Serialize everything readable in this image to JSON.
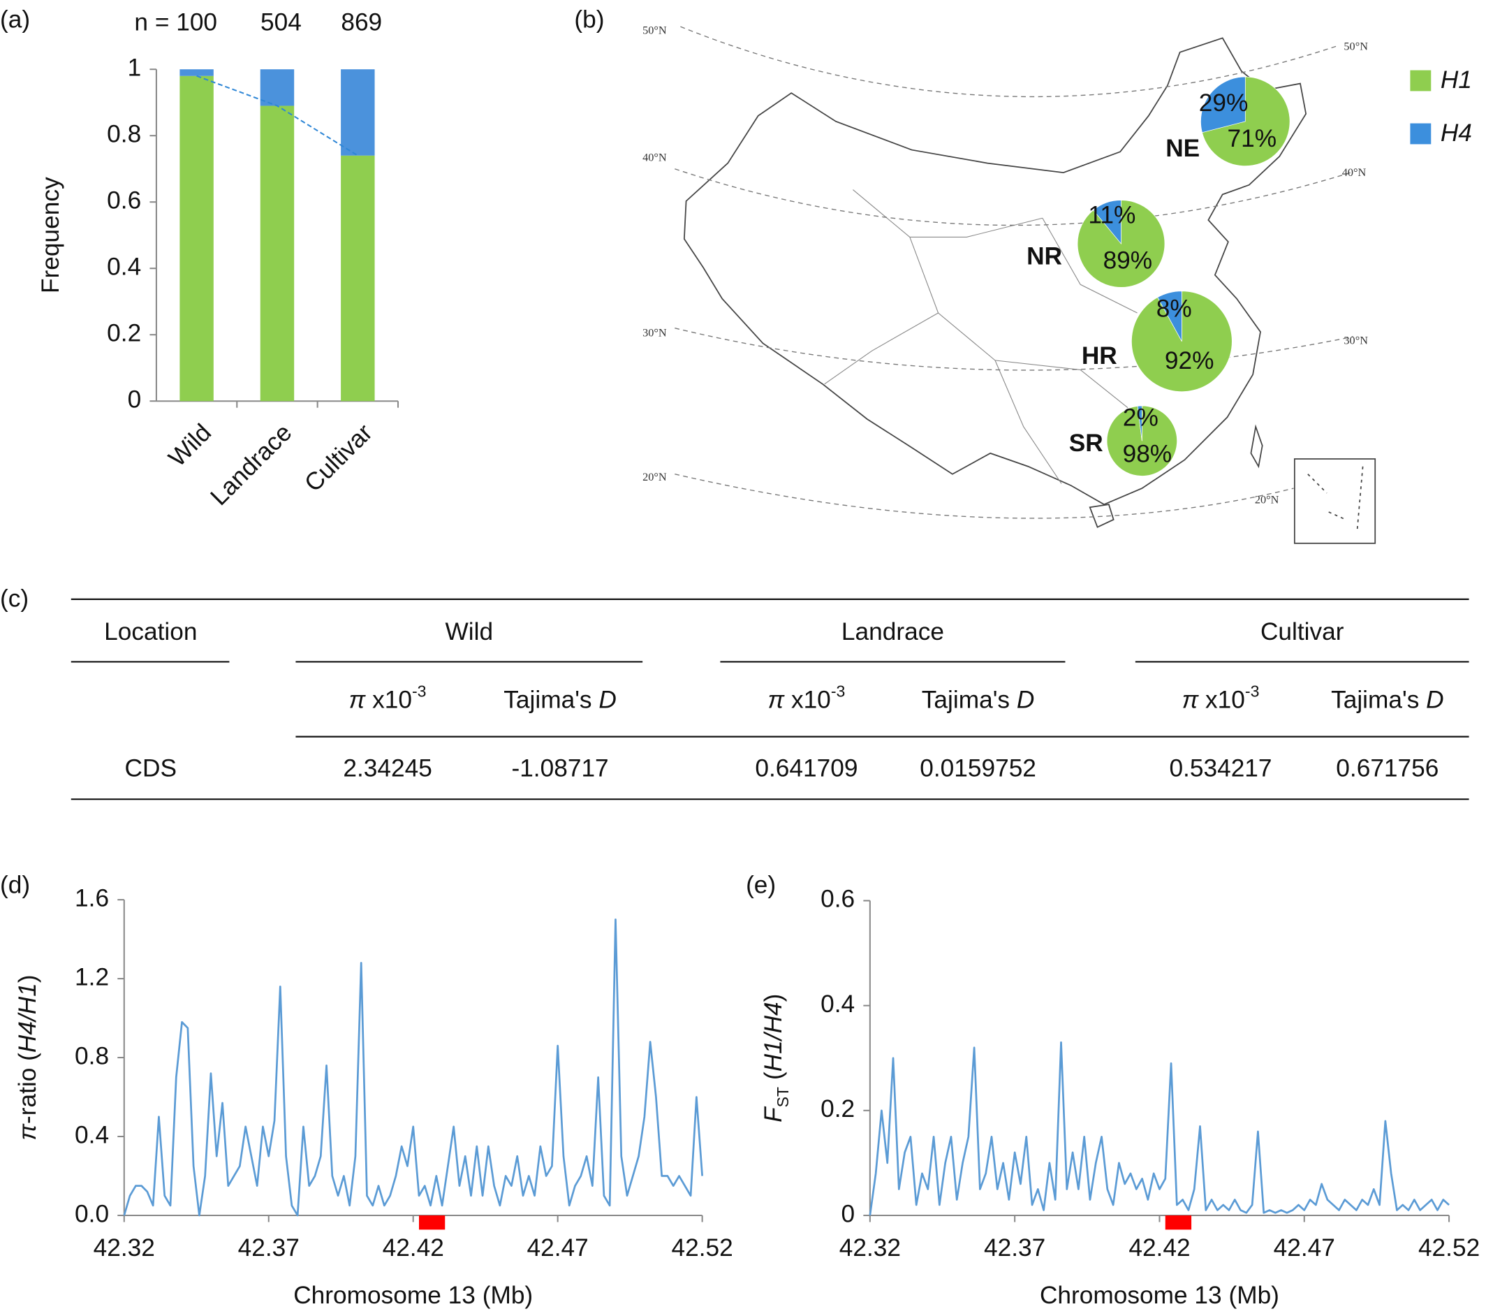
{
  "chart_data": [
    {
      "label": "(a)",
      "type": "bar",
      "stacked": true,
      "categories": [
        "Wild",
        "Landrace",
        "Cultivar"
      ],
      "annotations": [
        "n = 100",
        "504",
        "869"
      ],
      "series": [
        {
          "name": "H1",
          "color": "#8fce4f",
          "values": [
            0.98,
            0.89,
            0.74
          ]
        },
        {
          "name": "H4",
          "color": "#4b92dc",
          "values": [
            0.02,
            0.11,
            0.26
          ]
        }
      ],
      "ylabel": "Frequency",
      "ylim": [
        0,
        1
      ],
      "yticks": [
        0,
        0.2,
        0.4,
        0.6,
        0.8,
        1
      ],
      "trend_line": true,
      "trend_color": "#2e86d6"
    },
    {
      "label": "(b)",
      "type": "pie",
      "series": [
        {
          "name": "H1",
          "color": "#8fce4f"
        },
        {
          "name": "H4",
          "color": "#3c8fdd"
        }
      ],
      "regions": [
        {
          "name": "NE",
          "values": [
            71,
            29
          ],
          "value_labels": [
            "71%",
            "29%"
          ]
        },
        {
          "name": "NR",
          "values": [
            89,
            11
          ],
          "value_labels": [
            "89%",
            "11%"
          ]
        },
        {
          "name": "HR",
          "values": [
            92,
            8
          ],
          "value_labels": [
            "92%",
            "8%"
          ]
        },
        {
          "name": "SR",
          "values": [
            98,
            2
          ],
          "value_labels": [
            "98%",
            "2%"
          ]
        }
      ],
      "lat_labels": [
        "50°N",
        "40°N",
        "30°N",
        "20°N"
      ]
    },
    {
      "label": "(d)",
      "type": "line",
      "color": "#5b9bd5",
      "x": [
        42.32,
        42.322,
        42.324,
        42.326,
        42.328,
        42.33,
        42.332,
        42.334,
        42.336,
        42.338,
        42.34,
        42.342,
        42.344,
        42.346,
        42.348,
        42.35,
        42.352,
        42.354,
        42.356,
        42.358,
        42.36,
        42.362,
        42.364,
        42.366,
        42.368,
        42.37,
        42.372,
        42.374,
        42.376,
        42.378,
        42.38,
        42.382,
        42.384,
        42.386,
        42.388,
        42.39,
        42.392,
        42.394,
        42.396,
        42.398,
        42.4,
        42.402,
        42.404,
        42.406,
        42.408,
        42.41,
        42.412,
        42.414,
        42.416,
        42.418,
        42.42,
        42.422,
        42.424,
        42.426,
        42.428,
        42.43,
        42.432,
        42.434,
        42.436,
        42.438,
        42.44,
        42.442,
        42.444,
        42.446,
        42.448,
        42.45,
        42.452,
        42.454,
        42.456,
        42.458,
        42.46,
        42.462,
        42.464,
        42.466,
        42.468,
        42.47,
        42.472,
        42.474,
        42.476,
        42.478,
        42.48,
        42.482,
        42.484,
        42.486,
        42.488,
        42.49,
        42.492,
        42.494,
        42.496,
        42.498,
        42.5,
        42.502,
        42.504,
        42.506,
        42.508,
        42.51,
        42.512,
        42.514,
        42.516,
        42.518,
        42.52
      ],
      "values": [
        0,
        0.1,
        0.15,
        0.15,
        0.12,
        0.05,
        0.5,
        0.1,
        0.05,
        0.7,
        0.98,
        0.95,
        0.25,
        0,
        0.2,
        0.72,
        0.3,
        0.57,
        0.15,
        0.2,
        0.25,
        0.45,
        0.3,
        0.15,
        0.45,
        0.3,
        0.48,
        1.16,
        0.3,
        0.05,
        0,
        0.45,
        0.15,
        0.2,
        0.3,
        0.76,
        0.2,
        0.1,
        0.2,
        0.05,
        0.3,
        1.28,
        0.1,
        0.05,
        0.15,
        0.05,
        0.1,
        0.2,
        0.35,
        0.25,
        0.45,
        0.1,
        0.15,
        0.05,
        0.2,
        0.05,
        0.25,
        0.45,
        0.15,
        0.3,
        0.1,
        0.35,
        0.1,
        0.35,
        0.15,
        0.05,
        0.2,
        0.15,
        0.3,
        0.1,
        0.2,
        0.1,
        0.35,
        0.2,
        0.25,
        0.86,
        0.3,
        0.05,
        0.15,
        0.2,
        0.3,
        0.15,
        0.7,
        0.1,
        0.05,
        1.5,
        0.3,
        0.1,
        0.2,
        0.3,
        0.5,
        0.88,
        0.6,
        0.2,
        0.2,
        0.15,
        0.2,
        0.15,
        0.1,
        0.6,
        0.2
      ],
      "xlim": [
        42.32,
        42.52
      ],
      "xticks": [
        42.32,
        42.37,
        42.42,
        42.47,
        42.52
      ],
      "ylim": [
        0,
        1.6
      ],
      "yticks": [
        {
          "value": 0,
          "label": "0.0"
        },
        0.4,
        0.8,
        1.2,
        1.6
      ],
      "highlight": [
        42.422,
        42.431
      ],
      "highlight_color": "#ff0000",
      "xlabel": "Chromosome 13 (Mb)",
      "ylabel": [
        {
          "text": "π",
          "style": "italic"
        },
        {
          "text": "-ratio ("
        },
        {
          "text": "H4/H1",
          "style": "italic"
        },
        {
          "text": ")"
        }
      ]
    },
    {
      "label": "(e)",
      "type": "line",
      "color": "#5b9bd5",
      "x": [
        42.32,
        42.322,
        42.324,
        42.326,
        42.328,
        42.33,
        42.332,
        42.334,
        42.336,
        42.338,
        42.34,
        42.342,
        42.344,
        42.346,
        42.348,
        42.35,
        42.352,
        42.354,
        42.356,
        42.358,
        42.36,
        42.362,
        42.364,
        42.366,
        42.368,
        42.37,
        42.372,
        42.374,
        42.376,
        42.378,
        42.38,
        42.382,
        42.384,
        42.386,
        42.388,
        42.39,
        42.392,
        42.394,
        42.396,
        42.398,
        42.4,
        42.402,
        42.404,
        42.406,
        42.408,
        42.41,
        42.412,
        42.414,
        42.416,
        42.418,
        42.42,
        42.422,
        42.424,
        42.426,
        42.428,
        42.43,
        42.432,
        42.434,
        42.436,
        42.438,
        42.44,
        42.442,
        42.444,
        42.446,
        42.448,
        42.45,
        42.452,
        42.454,
        42.456,
        42.458,
        42.46,
        42.462,
        42.464,
        42.466,
        42.468,
        42.47,
        42.472,
        42.474,
        42.476,
        42.478,
        42.48,
        42.482,
        42.484,
        42.486,
        42.488,
        42.49,
        42.492,
        42.494,
        42.496,
        42.498,
        42.5,
        42.502,
        42.504,
        42.506,
        42.508,
        42.51,
        42.512,
        42.514,
        42.516,
        42.518,
        42.52
      ],
      "values": [
        0,
        0.08,
        0.2,
        0.1,
        0.3,
        0.05,
        0.12,
        0.15,
        0.02,
        0.08,
        0.05,
        0.15,
        0.02,
        0.1,
        0.15,
        0.03,
        0.1,
        0.15,
        0.32,
        0.05,
        0.08,
        0.15,
        0.05,
        0.1,
        0.03,
        0.12,
        0.06,
        0.15,
        0.02,
        0.05,
        0.01,
        0.1,
        0.03,
        0.33,
        0.05,
        0.12,
        0.05,
        0.15,
        0.03,
        0.1,
        0.15,
        0.05,
        0.02,
        0.1,
        0.06,
        0.08,
        0.05,
        0.07,
        0.03,
        0.08,
        0.05,
        0.07,
        0.29,
        0.02,
        0.03,
        0.01,
        0.05,
        0.17,
        0.01,
        0.03,
        0.01,
        0.02,
        0.01,
        0.03,
        0.01,
        0.005,
        0.02,
        0.16,
        0.005,
        0.01,
        0.005,
        0.01,
        0.005,
        0.01,
        0.02,
        0.01,
        0.03,
        0.02,
        0.06,
        0.03,
        0.02,
        0.01,
        0.03,
        0.02,
        0.01,
        0.03,
        0.02,
        0.05,
        0.02,
        0.18,
        0.08,
        0.01,
        0.02,
        0.01,
        0.03,
        0.01,
        0.02,
        0.03,
        0.01,
        0.03,
        0.02
      ],
      "xlim": [
        42.32,
        42.52
      ],
      "xticks": [
        42.32,
        42.37,
        42.42,
        42.47,
        42.52
      ],
      "ylim": [
        0,
        0.6
      ],
      "yticks": [
        0,
        0.2,
        0.4,
        0.6
      ],
      "highlight": [
        42.422,
        42.431
      ],
      "highlight_color": "#ff0000",
      "xlabel": "Chromosome 13 (Mb)",
      "ylabel": [
        {
          "text": "F",
          "style": "italic"
        },
        {
          "text": "ST",
          "style": "sub"
        },
        {
          "text": " ("
        },
        {
          "text": "H1/H4",
          "style": "italic"
        },
        {
          "text": ")"
        }
      ]
    }
  ],
  "table": {
    "label": "(c)",
    "first_header": "Location",
    "groups": [
      "Wild",
      "Landrace",
      "Cultivar"
    ],
    "subheaders": [
      [
        {
          "text": "π",
          "style": "italic"
        },
        {
          "text": " x10"
        },
        {
          "text": "-3",
          "style": "sup"
        }
      ],
      [
        {
          "text": "Tajima's "
        },
        {
          "text": "D",
          "style": "italic"
        }
      ]
    ],
    "rows": [
      [
        "CDS",
        "2.34245",
        "-1.08717",
        "0.641709",
        "0.0159752",
        "0.534217",
        "0.671756"
      ]
    ]
  }
}
